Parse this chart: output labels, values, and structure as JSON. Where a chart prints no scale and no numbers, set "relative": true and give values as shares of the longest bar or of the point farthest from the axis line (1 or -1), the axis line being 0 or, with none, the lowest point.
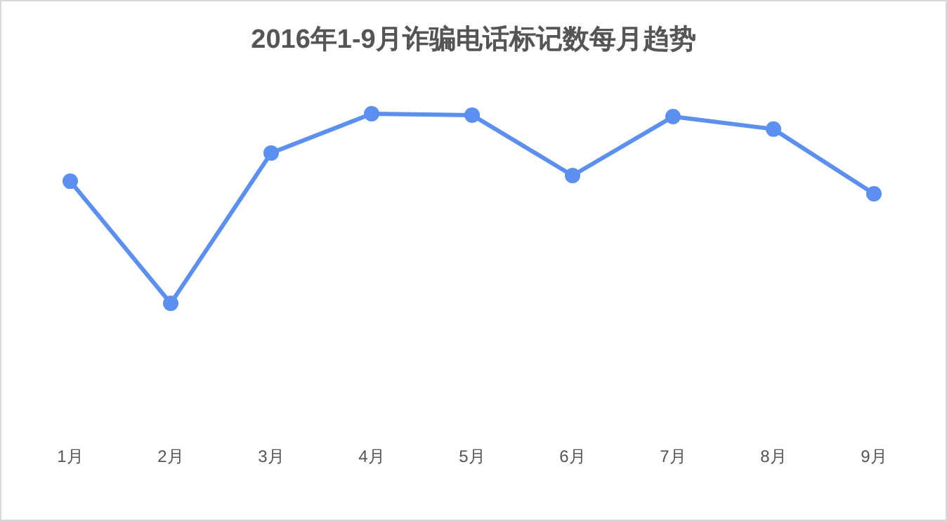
{
  "chart_data": {
    "type": "line",
    "title": "2016年1-9月诈骗电话标记数每月趋势",
    "relative": true,
    "categories": [
      "1月",
      "2月",
      "3月",
      "4月",
      "5月",
      "6月",
      "7月",
      "8月",
      "9月"
    ],
    "series": [
      {
        "color": "#5b8ff0",
        "values": [
          0.644,
          0,
          0.793,
          1,
          0.993,
          0.674,
          0.985,
          0.919,
          0.578
        ]
      }
    ],
    "marker": "circle",
    "line_style": "solid"
  }
}
